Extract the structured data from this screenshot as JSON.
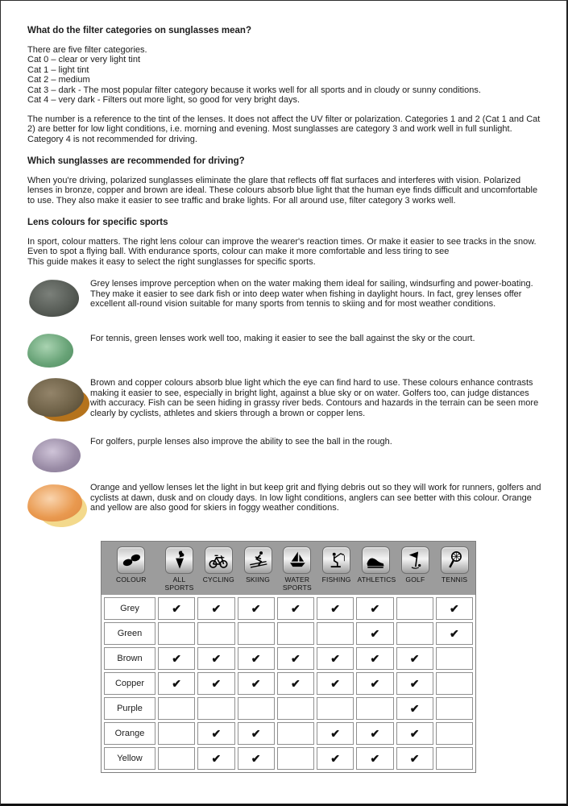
{
  "headings": {
    "filter_categories": "What do the filter categories on sunglasses mean?",
    "driving": "Which sunglasses are recommended for driving?",
    "lens_colours": "Lens colours for specific sports"
  },
  "filter_categories": {
    "intro": "There are five filter categories.",
    "items": [
      "Cat 0 – clear or very light tint",
      "Cat 1 – light tint",
      "Cat 2 – medium",
      "Cat 3 – dark - The most popular filter category because it works well for all sports and in cloudy or sunny conditions.",
      "Cat 4 – very dark - Filters out more light, so good for very bright days."
    ],
    "note": "The number is a reference to the tint of the lenses. It does not affect the UV filter or polarization. Categories 1 and 2 (Cat 1 and Cat 2) are better for low light conditions, i.e. morning and evening. Most sunglasses are category 3 and work well in full sunlight. Category 4 is not recommended for driving."
  },
  "driving": {
    "paragraph": "When you're driving, polarized sunglasses eliminate the glare that reflects off flat surfaces and interferes with vision. Polarized lenses in bronze, copper and brown are ideal. These colours absorb blue light that the human eye finds difficult and uncomfortable to use. They also make it easier to see traffic and brake lights. For all around use, filter category 3 works well."
  },
  "sports_intro": "In sport, colour matters. The right lens colour can improve the wearer's reaction times. Or make it easier to see tracks in the snow.\nEven to spot a flying ball. With endurance sports, colour can make it more comfortable and less tiring to see\nThis guide makes it easy to select the right sunglasses for specific sports.",
  "lens_entries": [
    {
      "name": "grey",
      "colors": {
        "light": "#7b807a",
        "base": "#565b55",
        "dark": "#3a3e39",
        "back": null
      },
      "text": "Grey lenses improve perception when on the water making them ideal for sailing, windsurfing and power-boating. They make it easier to see dark fish or into deep water when fishing in daylight hours. In fact, grey lenses offer excellent all-round vision suitable for many sports from tennis to skiing and for most weather conditions."
    },
    {
      "name": "green",
      "colors": {
        "light": "#a9d3b1",
        "base": "#68a377",
        "dark": "#4f8a5f",
        "back": null
      },
      "text": "For tennis, green lenses work well too, making it easier to see the ball against the sky or the court."
    },
    {
      "name": "brown",
      "colors": {
        "light": "#93846a",
        "base": "#6e6147",
        "dark": "#4c4330",
        "back": "#b5731c"
      },
      "text": "Brown and copper colours absorb blue light which the eye can find hard to use. These colours enhance contrasts making it easier to see, especially in bright light, against a blue sky or on water. Golfers too, can judge distances with accuracy. Fish can be seen hiding in grassy river beds. Contours and hazards in the terrain can be seen more clearly by cyclists, athletes and skiers through a brown or copper lens."
    },
    {
      "name": "purple",
      "colors": {
        "light": "#cfc4d8",
        "base": "#9a8ca6",
        "dark": "#837693",
        "back": null
      },
      "text": "For golfers, purple lenses also improve the ability to see the ball in the rough."
    },
    {
      "name": "orange",
      "colors": {
        "light": "#f9d4ae",
        "base": "#e9994f",
        "dark": "#dd8740",
        "back": "#f3d98c"
      },
      "text": "Orange and yellow lenses let the light in but keep grit and flying debris out so they will work for runners, golfers and cyclists at dawn, dusk and on cloudy days. In low light conditions, anglers can see better with this colour. Orange and yellow are also good for skiers in foggy weather conditions."
    }
  ],
  "table": {
    "header_bg": "#9c9c9c",
    "border_color": "#7e7e7e",
    "check_glyph": "✔",
    "columns": [
      {
        "label": "COLOUR",
        "icon": "sunglasses-icon"
      },
      {
        "label": "ALL SPORTS",
        "icon": "torch-icon"
      },
      {
        "label": "CYCLING",
        "icon": "bicycle-icon"
      },
      {
        "label": "SKIING",
        "icon": "skier-icon"
      },
      {
        "label": "WATER SPORTS",
        "icon": "sailboat-icon"
      },
      {
        "label": "FISHING",
        "icon": "angler-icon"
      },
      {
        "label": "ATHLETICS",
        "icon": "running-shoe-icon"
      },
      {
        "label": "GOLF",
        "icon": "golf-flag-icon"
      },
      {
        "label": "TENNIS",
        "icon": "tennis-racket-icon"
      }
    ],
    "rows": [
      {
        "label": "Grey",
        "checks": [
          1,
          1,
          1,
          1,
          1,
          1,
          0,
          1
        ]
      },
      {
        "label": "Green",
        "checks": [
          0,
          0,
          0,
          0,
          0,
          1,
          0,
          1
        ]
      },
      {
        "label": "Brown",
        "checks": [
          1,
          1,
          1,
          1,
          1,
          1,
          1,
          0
        ]
      },
      {
        "label": "Copper",
        "checks": [
          1,
          1,
          1,
          1,
          1,
          1,
          1,
          0
        ]
      },
      {
        "label": "Purple",
        "checks": [
          0,
          0,
          0,
          0,
          0,
          0,
          1,
          0
        ]
      },
      {
        "label": "Orange",
        "checks": [
          0,
          1,
          1,
          0,
          1,
          1,
          1,
          0
        ]
      },
      {
        "label": "Yellow",
        "checks": [
          0,
          1,
          1,
          0,
          1,
          1,
          1,
          0
        ]
      }
    ]
  }
}
